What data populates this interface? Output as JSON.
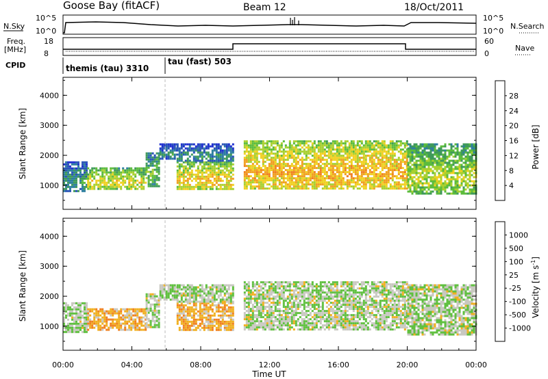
{
  "header": {
    "station": "Goose Bay (fitACF)",
    "beam": "Beam 12",
    "date": "18/Oct/2011"
  },
  "top_panels": {
    "nsky_label": "N.Sky",
    "nsky_ticks": [
      "10^5",
      "10^0"
    ],
    "nsearch_label": "N.Search",
    "freq_label": "Freq.",
    "freq_unit": "[MHz]",
    "freq_ticks": [
      "18",
      "8"
    ],
    "nave_label": "Nave",
    "nave_ticks": [
      "60",
      "0"
    ],
    "nsearch_ticks": [
      "10^5",
      "10^0"
    ],
    "cpid_label": "CPID",
    "cpid_segments": [
      "themis (tau) 3310",
      "tau (fast) 503"
    ]
  },
  "colors": {
    "power": [
      "#2030d0",
      "#2a55b8",
      "#2e7fa0",
      "#3f9a5a",
      "#5cbc3c",
      "#a8d030",
      "#f0d020",
      "#f0a020",
      "#f08020",
      "#e05018",
      "#e01010"
    ],
    "velocity": [
      "#2040d0",
      "#3060b0",
      "#4a9a70",
      "#60c040",
      "#c8c8c0",
      "#f0b020",
      "#f08020",
      "#e04010",
      "#e01010"
    ]
  },
  "chart_data": [
    {
      "type": "heatmap",
      "name": "power",
      "ylabel": "Slant Range [km]",
      "yticks": [
        "1000",
        "2000",
        "3000",
        "4000"
      ],
      "ylim": [
        200,
        4600
      ],
      "colorbar_label": "Power [dB]",
      "colorbar_ticks": [
        "4",
        "8",
        "12",
        "16",
        "20",
        "24",
        "28"
      ],
      "colorbar_range": [
        0,
        30
      ],
      "xlim_hours": [
        0,
        24
      ],
      "echo_regions": [
        {
          "t0": 0.0,
          "t1": 1.4,
          "r0": 800,
          "r1": 1800,
          "level": 0.25
        },
        {
          "t0": 1.4,
          "t1": 4.8,
          "r0": 900,
          "r1": 1600,
          "level": 0.5
        },
        {
          "t0": 4.8,
          "t1": 5.6,
          "r0": 1000,
          "r1": 2100,
          "level": 0.35
        },
        {
          "t0": 5.6,
          "t1": 6.6,
          "r0": 1900,
          "r1": 2400,
          "level": 0.2
        },
        {
          "t0": 6.6,
          "t1": 9.9,
          "r0": 900,
          "r1": 1800,
          "level": 0.55
        },
        {
          "t0": 6.6,
          "t1": 9.9,
          "r0": 1800,
          "r1": 2400,
          "level": 0.22
        },
        {
          "t0": 10.5,
          "t1": 20.0,
          "r0": 900,
          "r1": 2500,
          "level": 0.6
        },
        {
          "t0": 20.0,
          "t1": 24.0,
          "r0": 700,
          "r1": 2400,
          "level": 0.45
        }
      ]
    },
    {
      "type": "heatmap",
      "name": "velocity",
      "ylabel": "Slant Range [km]",
      "yticks": [
        "1000",
        "2000",
        "3000",
        "4000"
      ],
      "ylim": [
        200,
        4600
      ],
      "colorbar_label": "Velocity [m s",
      "colorbar_label_exp": "-1",
      "colorbar_ticks": [
        "1000",
        "500",
        "100",
        "25",
        "-25",
        "-100",
        "-500",
        "-1000"
      ],
      "xlim_hours": [
        0,
        24
      ],
      "xticks": [
        "00:00",
        "04:00",
        "08:00",
        "12:00",
        "16:00",
        "20:00",
        "00:00"
      ],
      "xlabel": "Time UT",
      "echo_regions": [
        {
          "t0": 0.0,
          "t1": 1.4,
          "r0": 800,
          "r1": 1800,
          "level": 0.45
        },
        {
          "t0": 1.4,
          "t1": 4.8,
          "r0": 900,
          "r1": 1600,
          "level": 0.62
        },
        {
          "t0": 4.8,
          "t1": 5.6,
          "r0": 1000,
          "r1": 2100,
          "level": 0.48
        },
        {
          "t0": 5.6,
          "t1": 6.6,
          "r0": 1900,
          "r1": 2400,
          "level": 0.45
        },
        {
          "t0": 6.6,
          "t1": 9.9,
          "r0": 900,
          "r1": 1800,
          "level": 0.62
        },
        {
          "t0": 6.6,
          "t1": 9.9,
          "r0": 1800,
          "r1": 2400,
          "level": 0.46
        },
        {
          "t0": 10.5,
          "t1": 20.0,
          "r0": 900,
          "r1": 2500,
          "level": 0.47
        },
        {
          "t0": 20.0,
          "t1": 24.0,
          "r0": 700,
          "r1": 2400,
          "level": 0.47
        }
      ]
    }
  ]
}
